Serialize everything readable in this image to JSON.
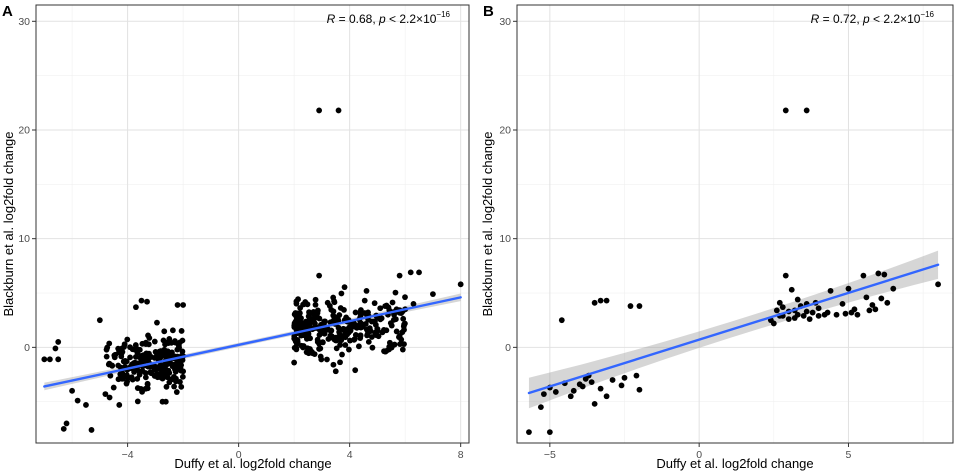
{
  "chart_data": [
    {
      "type": "scatter",
      "panel_label": "A",
      "xlabel": "Duffy et al. log2fold change",
      "ylabel": "Blackburn et al. log2fold change",
      "xlim": [
        -7.3,
        8.3
      ],
      "ylim": [
        -8.8,
        31.5
      ],
      "x_ticks": [
        -4,
        0,
        4,
        8
      ],
      "x_tick_labels": [
        "−4",
        "0",
        "4",
        "8"
      ],
      "y_ticks": [
        0,
        10,
        20,
        30
      ],
      "y_tick_labels": [
        "0",
        "10",
        "20",
        "30"
      ],
      "grid": true,
      "annotation": {
        "r_label": "R",
        "r_text": " = 0.68, ",
        "p_label": "p",
        "p_text": " < 2.2×10",
        "p_exp": "−16"
      },
      "fit": {
        "x0": -7.0,
        "y0": -3.6,
        "x1": 8.0,
        "y1": 4.6,
        "se0": 0.35,
        "se1": 0.35
      },
      "clusters": [
        {
          "n": 240,
          "x": [
            -4.8,
            -2.0
          ],
          "y_mean": -1.3,
          "y_sd": 1.2,
          "y_min": -5.0,
          "y_max": 4.2,
          "x_skew": 0.75
        },
        {
          "n": 300,
          "x": [
            2.0,
            6.0
          ],
          "y_mean": 1.9,
          "y_sd": 1.3,
          "y_min": -2.3,
          "y_max": 6.8,
          "x_skew": 1.4
        }
      ],
      "points": [
        [
          -7.0,
          -1.1
        ],
        [
          -6.8,
          -1.1
        ],
        [
          -6.6,
          -0.1
        ],
        [
          -6.5,
          0.5
        ],
        [
          -6.5,
          -1.1
        ],
        [
          -6.2,
          -7.0
        ],
        [
          -6.3,
          -7.5
        ],
        [
          -6.0,
          -4.0
        ],
        [
          -5.8,
          -4.9
        ],
        [
          -5.5,
          -5.3
        ],
        [
          -5.3,
          -7.6
        ],
        [
          -5.0,
          2.5
        ],
        [
          -4.8,
          -4.3
        ],
        [
          -4.5,
          -3.7
        ],
        [
          -4.3,
          -5.3
        ],
        [
          -3.5,
          4.3
        ],
        [
          -3.3,
          4.2
        ],
        [
          -3.7,
          3.7
        ],
        [
          -2.2,
          3.9
        ],
        [
          -2.0,
          3.9
        ],
        [
          -2.0,
          -2.2
        ],
        [
          -2.1,
          -1.6
        ],
        [
          -2.0,
          -0.8
        ],
        [
          2.9,
          21.8
        ],
        [
          3.6,
          21.8
        ],
        [
          2.9,
          6.6
        ],
        [
          2.0,
          -1.4
        ],
        [
          2.1,
          0.3
        ],
        [
          3.5,
          -2.2
        ],
        [
          4.2,
          -2.1
        ],
        [
          5.8,
          6.6
        ],
        [
          6.2,
          6.9
        ],
        [
          6.5,
          6.9
        ],
        [
          7.0,
          4.9
        ],
        [
          8.0,
          5.8
        ],
        [
          6.3,
          4.0
        ],
        [
          5.6,
          3.0
        ],
        [
          6.0,
          3.5
        ]
      ]
    },
    {
      "type": "scatter",
      "panel_label": "B",
      "xlabel": "Duffy et al. log2fold change",
      "ylabel": "Blackburn et al. log2fold change",
      "xlim": [
        -6.1,
        8.5
      ],
      "ylim": [
        -8.8,
        31.5
      ],
      "x_ticks": [
        -5,
        0,
        5
      ],
      "x_tick_labels": [
        "−5",
        "0",
        "5"
      ],
      "y_ticks": [
        0,
        10,
        20,
        30
      ],
      "y_tick_labels": [
        "0",
        "10",
        "20",
        "30"
      ],
      "grid": true,
      "annotation": {
        "r_label": "R",
        "r_text": " = 0.72, ",
        "p_label": "p",
        "p_text": " < 2.2×10",
        "p_exp": "−16"
      },
      "fit": {
        "x0": -5.7,
        "y0": -4.2,
        "x1": 8.0,
        "y1": 7.6,
        "se0": 1.4,
        "se1": 1.3
      },
      "points": [
        [
          -5.7,
          -7.8
        ],
        [
          -5.3,
          -5.5
        ],
        [
          -5.0,
          -7.8
        ],
        [
          -5.2,
          -4.3
        ],
        [
          -5.0,
          -3.7
        ],
        [
          -4.8,
          -4.1
        ],
        [
          -4.6,
          2.5
        ],
        [
          -4.5,
          -3.3
        ],
        [
          -4.3,
          -4.5
        ],
        [
          -4.0,
          -3.4
        ],
        [
          -4.2,
          -4.0
        ],
        [
          -3.9,
          -3.6
        ],
        [
          -3.8,
          -2.9
        ],
        [
          -3.6,
          -3.2
        ],
        [
          -3.5,
          4.1
        ],
        [
          -3.3,
          4.3
        ],
        [
          -3.1,
          4.3
        ],
        [
          -3.3,
          -3.8
        ],
        [
          -3.5,
          -5.2
        ],
        [
          -3.1,
          -4.5
        ],
        [
          -2.9,
          -3.0
        ],
        [
          -2.6,
          -3.5
        ],
        [
          -2.3,
          3.8
        ],
        [
          -2.0,
          3.8
        ],
        [
          -2.1,
          -2.6
        ],
        [
          -2.0,
          -3.9
        ],
        [
          -2.5,
          -2.8
        ],
        [
          -3.7,
          -2.6
        ],
        [
          2.9,
          21.8
        ],
        [
          3.6,
          21.8
        ],
        [
          2.5,
          2.2
        ],
        [
          2.6,
          3.4
        ],
        [
          2.7,
          4.1
        ],
        [
          2.8,
          2.9
        ],
        [
          2.9,
          6.6
        ],
        [
          3.0,
          3.3
        ],
        [
          3.1,
          5.3
        ],
        [
          3.2,
          2.7
        ],
        [
          3.3,
          4.4
        ],
        [
          3.4,
          3.8
        ],
        [
          3.5,
          2.9
        ],
        [
          3.6,
          4.0
        ],
        [
          3.7,
          2.6
        ],
        [
          3.8,
          3.2
        ],
        [
          3.9,
          4.1
        ],
        [
          4.0,
          3.6
        ],
        [
          4.2,
          3.0
        ],
        [
          4.4,
          5.2
        ],
        [
          4.6,
          3.0
        ],
        [
          4.8,
          4.0
        ],
        [
          5.0,
          5.4
        ],
        [
          5.1,
          3.2
        ],
        [
          5.3,
          3.0
        ],
        [
          5.5,
          6.6
        ],
        [
          5.6,
          4.6
        ],
        [
          5.8,
          3.9
        ],
        [
          6.0,
          6.8
        ],
        [
          6.2,
          6.7
        ],
        [
          6.5,
          5.4
        ],
        [
          5.7,
          3.4
        ],
        [
          8.0,
          5.8
        ],
        [
          2.4,
          2.5
        ],
        [
          3.0,
          2.6
        ],
        [
          4.3,
          3.2
        ],
        [
          5.2,
          3.5
        ],
        [
          6.3,
          4.1
        ],
        [
          3.3,
          3.0
        ],
        [
          2.8,
          3.7
        ],
        [
          4.9,
          3.1
        ],
        [
          5.9,
          3.5
        ],
        [
          6.1,
          4.5
        ],
        [
          3.2,
          3.4
        ],
        [
          4.0,
          2.9
        ],
        [
          3.6,
          3.3
        ],
        [
          2.7,
          2.9
        ]
      ]
    }
  ]
}
